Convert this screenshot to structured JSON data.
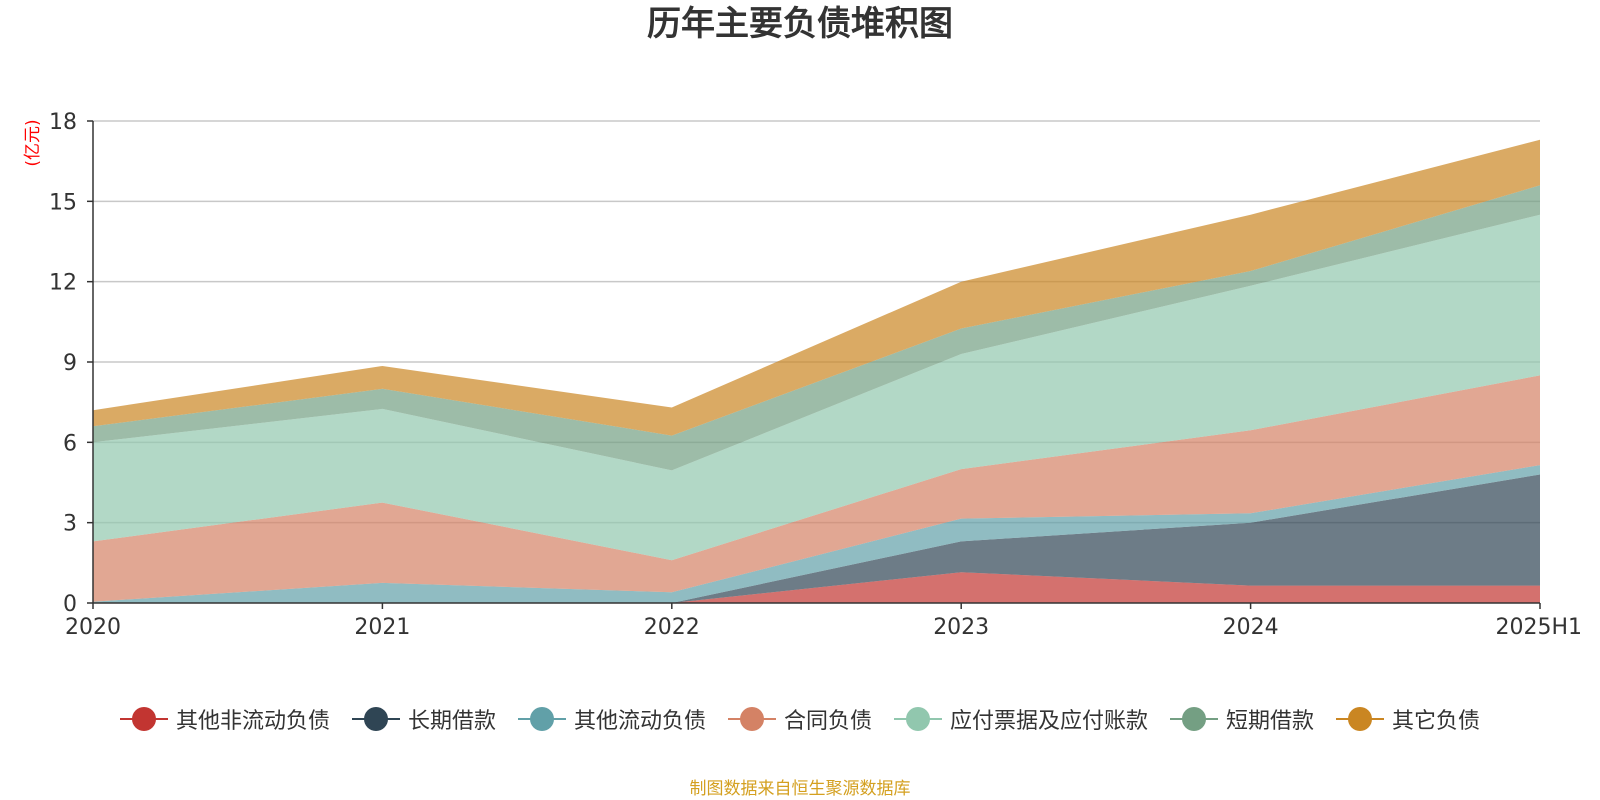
{
  "chart_data": {
    "type": "area",
    "stacked": true,
    "title": "历年主要负债堆积图",
    "ylabel": "(亿元)",
    "x": [
      "2020",
      "2021",
      "2022",
      "2023",
      "2024",
      "2025H1"
    ],
    "ylim": [
      0,
      18
    ],
    "yticks": [
      0,
      3,
      6,
      9,
      12,
      15,
      18
    ],
    "grid": true,
    "legend_position": "bottom",
    "series": [
      {
        "name": "其他非流动负债",
        "color": "#c23531",
        "values": [
          0,
          0,
          0,
          1.15,
          0.65,
          0.65
        ]
      },
      {
        "name": "长期借款",
        "color": "#2f4554",
        "values": [
          0,
          0,
          0,
          1.15,
          2.35,
          4.15
        ]
      },
      {
        "name": "其他流动负债",
        "color": "#61a0a8",
        "values": [
          0.05,
          0.75,
          0.4,
          0.85,
          0.35,
          0.35
        ]
      },
      {
        "name": "合同负债",
        "color": "#d48265",
        "values": [
          2.25,
          3.0,
          1.2,
          1.85,
          3.1,
          3.35
        ]
      },
      {
        "name": "应付票据及应付账款",
        "color": "#91c7ae",
        "values": [
          3.7,
          3.5,
          3.35,
          4.3,
          5.4,
          6.0
        ]
      },
      {
        "name": "短期借款",
        "color": "#749f83",
        "values": [
          0.6,
          0.75,
          1.3,
          0.95,
          0.55,
          1.1
        ]
      },
      {
        "name": "其它负债",
        "color": "#ca8622",
        "values": [
          0.6,
          0.85,
          1.05,
          1.75,
          2.1,
          1.7
        ]
      }
    ]
  },
  "source_note": "制图数据来自恒生聚源数据库"
}
